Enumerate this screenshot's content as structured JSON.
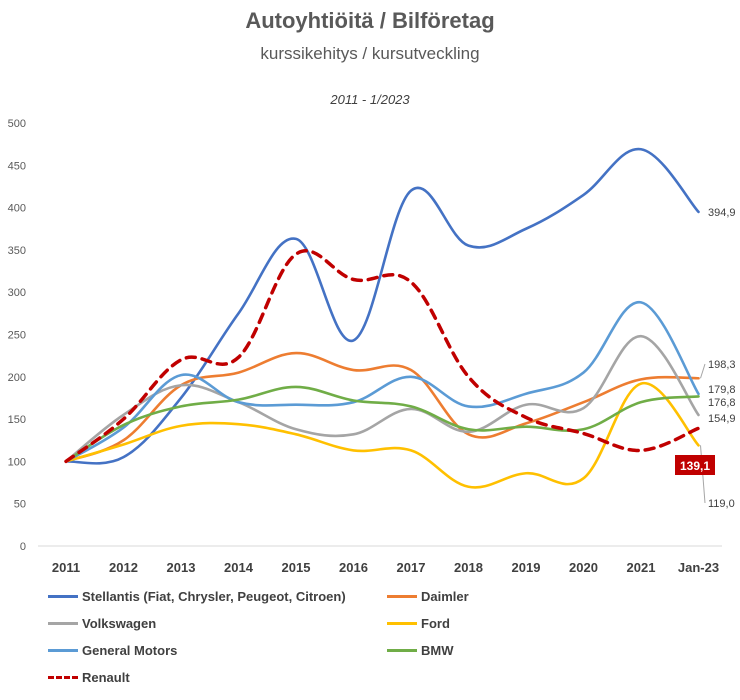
{
  "chart_data": {
    "type": "line",
    "title": "Autoyhtiöitä / Bilföretag",
    "subtitle": "kurssikehitys / kursutveckling",
    "period": "2011 - 1/2023",
    "categories": [
      "2011",
      "2012",
      "2013",
      "2014",
      "2015",
      "2016",
      "2017",
      "2018",
      "2019",
      "2020",
      "2021",
      "Jan-23"
    ],
    "ylim": [
      0,
      500
    ],
    "yticks": [
      0,
      50,
      100,
      150,
      200,
      250,
      300,
      350,
      400,
      450,
      500
    ],
    "grid": false,
    "legend_position": "bottom",
    "series": [
      {
        "name": "Stellantis (Fiat, Chrysler, Peugeot, Citroen)",
        "color": "#4472C4",
        "dashed": false,
        "values": [
          100,
          105,
          175,
          275,
          363,
          243,
          420,
          355,
          375,
          415,
          469,
          394.9
        ],
        "end_label": "394,9"
      },
      {
        "name": "Daimler",
        "color": "#ED7D31",
        "dashed": false,
        "values": [
          100,
          125,
          190,
          205,
          228,
          208,
          208,
          132,
          145,
          170,
          197,
          198.3
        ],
        "end_label": "198,3"
      },
      {
        "name": "Volkswagen",
        "color": "#A5A5A5",
        "dashed": false,
        "values": [
          100,
          155,
          190,
          170,
          138,
          132,
          162,
          135,
          167,
          163,
          248,
          154.9
        ],
        "end_label": "154,9"
      },
      {
        "name": "Ford",
        "color": "#FFC000",
        "dashed": false,
        "values": [
          100,
          120,
          142,
          144,
          132,
          113,
          113,
          70,
          86,
          80,
          192,
          119.0
        ],
        "end_label": "119,0"
      },
      {
        "name": "General Motors",
        "color": "#5B9BD5",
        "dashed": false,
        "values": [
          100,
          140,
          202,
          170,
          167,
          170,
          200,
          165,
          180,
          205,
          288,
          179.8
        ],
        "end_label": "179,8"
      },
      {
        "name": "BMW",
        "color": "#70AD47",
        "dashed": false,
        "values": [
          100,
          143,
          165,
          173,
          188,
          172,
          165,
          138,
          141,
          138,
          170,
          176.8
        ],
        "end_label": "176,8"
      },
      {
        "name": "Renault",
        "color": "#C00000",
        "dashed": true,
        "values": [
          100,
          150,
          220,
          223,
          345,
          315,
          312,
          200,
          152,
          133,
          113,
          139.1
        ],
        "end_label": "139,1",
        "end_label_highlight": true
      }
    ]
  }
}
